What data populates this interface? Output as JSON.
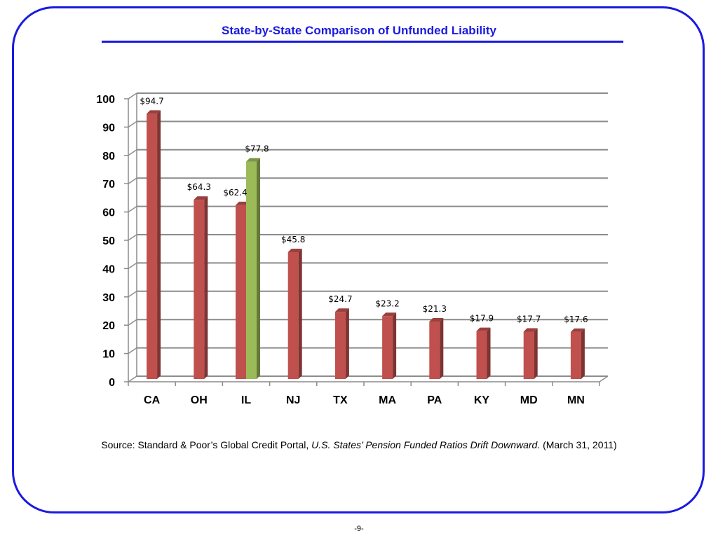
{
  "slide": {
    "title": "State-by-State Comparison of Unfunded Liability",
    "source_prefix": "Source: Standard & Poor’s Global Credit Portal, ",
    "source_publication": "U.S. States’ Pension Funded Ratios Drift Downward",
    "source_suffix": ".   (March 31, 2011)",
    "page_number": "-9-"
  },
  "chart_data": {
    "type": "bar",
    "categories": [
      "CA",
      "OH",
      "IL",
      "NJ",
      "TX",
      "MA",
      "PA",
      "KY",
      "MD",
      "MN"
    ],
    "series": [
      {
        "values": [
          94.7,
          64.3,
          62.4,
          45.8,
          24.7,
          23.2,
          21.3,
          17.9,
          17.7,
          17.6
        ],
        "data_labels": [
          "$94.7",
          "$64.3",
          "$62.4",
          "$45.8",
          "$24.7",
          "$23.2",
          "$21.3",
          "$17.9",
          "$17.7",
          "$17.6"
        ],
        "color": "#c0504d"
      },
      {
        "values": [
          null,
          null,
          77.8,
          null,
          null,
          null,
          null,
          null,
          null,
          null
        ],
        "data_labels": [
          null,
          null,
          "$77.8",
          null,
          null,
          null,
          null,
          null,
          null,
          null
        ],
        "color": "#9bbb59"
      }
    ],
    "ylim": [
      0,
      100
    ],
    "yticks": [
      0,
      10,
      20,
      30,
      40,
      50,
      60,
      70,
      80,
      90,
      100
    ],
    "grid": true,
    "legend": "none",
    "style": "3d"
  }
}
